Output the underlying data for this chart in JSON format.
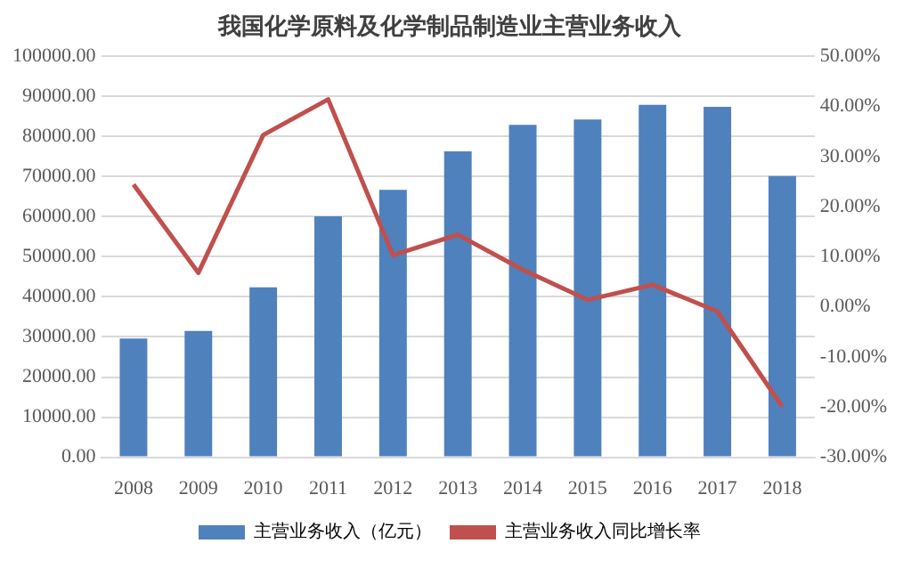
{
  "chart_data": {
    "type": "bar",
    "title": "我国化学原料及化学制品制造业主营业务收入",
    "categories": [
      "2008",
      "2009",
      "2010",
      "2011",
      "2012",
      "2013",
      "2014",
      "2015",
      "2016",
      "2017",
      "2018"
    ],
    "series": [
      {
        "name": "主营业务收入（亿元）",
        "color": "#4f81bd",
        "values": [
          29600,
          31500,
          42400,
          60100,
          66700,
          76300,
          82900,
          84200,
          87900,
          87400,
          70100
        ]
      },
      {
        "name": "主营业务收入同比增长率",
        "type": "line",
        "axis": "y2",
        "color": "#c0504d",
        "values": [
          24.4,
          6.8,
          34.3,
          41.4,
          10.3,
          14.4,
          7.4,
          1.4,
          4.4,
          -0.9,
          -19.9
        ]
      }
    ],
    "ylim": [
      0,
      100000
    ],
    "yticks": [
      {
        "value": 0,
        "label": "0.00"
      },
      {
        "value": 10000,
        "label": "10000.00"
      },
      {
        "value": 20000,
        "label": "20000.00"
      },
      {
        "value": 30000,
        "label": "30000.00"
      },
      {
        "value": 40000,
        "label": "40000.00"
      },
      {
        "value": 50000,
        "label": "50000.00"
      },
      {
        "value": 60000,
        "label": "60000.00"
      },
      {
        "value": 70000,
        "label": "70000.00"
      },
      {
        "value": 80000,
        "label": "80000.00"
      },
      {
        "value": 90000,
        "label": "90000.00"
      },
      {
        "value": 100000,
        "label": "100000.00"
      }
    ],
    "y2lim": [
      -30,
      50
    ],
    "y2ticks": [
      {
        "value": -30,
        "label": "-30.00%"
      },
      {
        "value": -20,
        "label": "-20.00%"
      },
      {
        "value": -10,
        "label": "-10.00%"
      },
      {
        "value": 0,
        "label": "0.00%"
      },
      {
        "value": 10,
        "label": "10.00%"
      },
      {
        "value": 20,
        "label": "20.00%"
      },
      {
        "value": 30,
        "label": "30.00%"
      },
      {
        "value": 40,
        "label": "40.00%"
      },
      {
        "value": 50,
        "label": "50.00%"
      }
    ],
    "grid": "y",
    "legend": "bottom",
    "marker": "none",
    "line_style": "solid"
  }
}
